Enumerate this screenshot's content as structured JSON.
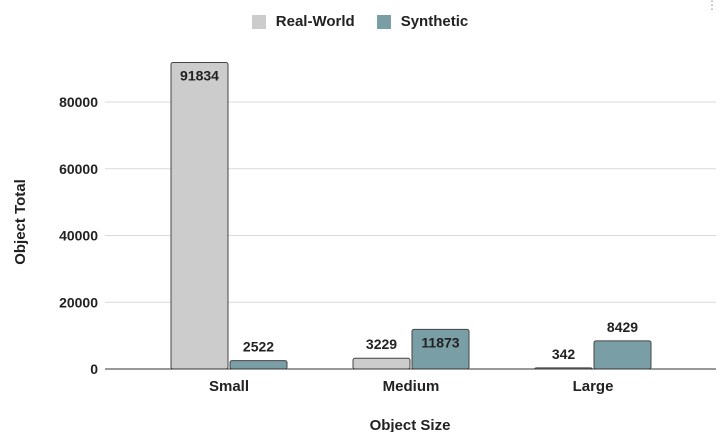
{
  "chart_data": {
    "type": "bar",
    "title": "",
    "xlabel": "Object Size",
    "ylabel": "Object Total",
    "categories": [
      "Small",
      "Medium",
      "Large"
    ],
    "series": [
      {
        "name": "Real-World",
        "color": "#cccccc",
        "values": [
          91834,
          3229,
          342
        ]
      },
      {
        "name": "Synthetic",
        "color": "#7a9ea6",
        "values": [
          2522,
          11873,
          8429
        ]
      }
    ],
    "ylim": [
      0,
      93000
    ],
    "yticks": [
      "0",
      "20000",
      "40000",
      "60000",
      "80000"
    ],
    "ytick_values": [
      0,
      20000,
      40000,
      60000,
      80000
    ],
    "grid": true,
    "legend_position": "top-center"
  }
}
